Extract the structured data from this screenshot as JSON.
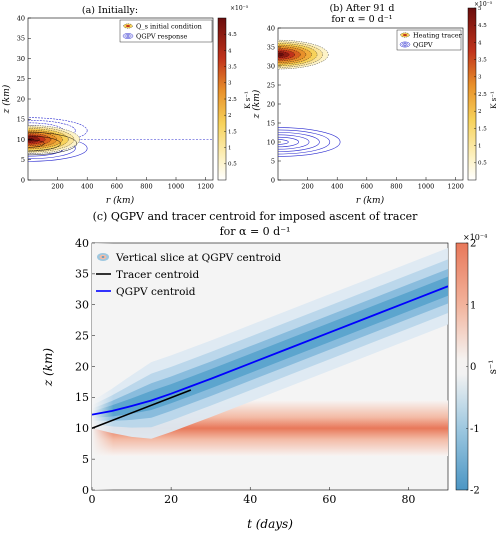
{
  "chart_data": [
    {
      "panel": "a",
      "type": "contour",
      "title": "(a) Initially:",
      "xlabel": "r (km)",
      "ylabel": "z (km)",
      "xlim": [
        0,
        1250
      ],
      "ylim": [
        0,
        40
      ],
      "xticks": [
        "200",
        "400",
        "600",
        "800",
        "1000",
        "1200"
      ],
      "yticks": [
        "0",
        "5",
        "10",
        "15",
        "20",
        "25",
        "30",
        "35",
        "40"
      ],
      "legend": [
        "Q_s initial condition",
        "QGPV response"
      ],
      "legend_placement": "top-right",
      "heating_center_km": [
        0,
        10
      ],
      "qgpv_center_km": [
        0,
        10
      ],
      "colorbar": {
        "label": "K s⁻¹",
        "multiplier": "×10⁻⁵",
        "ticks": [
          "0.5",
          "1",
          "1.5",
          "2",
          "2.5",
          "3",
          "3.5",
          "4",
          "4.5"
        ],
        "range": [
          0,
          5
        ]
      }
    },
    {
      "panel": "b",
      "type": "contour",
      "title_line1": "(b) After 91 d",
      "title_line2": "for α = 0 d⁻¹",
      "xlabel": "r (km)",
      "ylabel": "z (km)",
      "xlim": [
        0,
        1250
      ],
      "ylim": [
        0,
        40
      ],
      "xticks": [
        "200",
        "400",
        "600",
        "800",
        "1000",
        "1200"
      ],
      "yticks": [
        "0",
        "5",
        "10",
        "15",
        "20",
        "25",
        "30",
        "35",
        "40"
      ],
      "legend": [
        "Heating tracer",
        "QGPV"
      ],
      "legend_placement": "top-right",
      "heating_center_km": [
        0,
        33
      ],
      "qgpv_center_km": [
        0,
        10
      ],
      "colorbar": {
        "label": "K s⁻¹",
        "multiplier": "×10⁻⁵",
        "ticks": [
          "0.5",
          "1",
          "1.5",
          "2",
          "2.5",
          "3",
          "3.5",
          "4",
          "4.5",
          "5"
        ],
        "range": [
          0,
          5
        ]
      }
    },
    {
      "panel": "c",
      "type": "line",
      "title_line1": "(c) QGPV and tracer centroid for imposed ascent of tracer",
      "title_line2": "for α = 0 d⁻¹",
      "xlabel": "t (days)",
      "ylabel": "z (km)",
      "xlim": [
        0,
        90
      ],
      "ylim": [
        0,
        40
      ],
      "xticks": [
        "0",
        "20",
        "40",
        "60",
        "80"
      ],
      "yticks": [
        "0",
        "5",
        "10",
        "15",
        "20",
        "25",
        "30",
        "35",
        "40"
      ],
      "legend": [
        "Vertical slice at QGPV centroid",
        "Tracer centroid",
        "QGPV centroid"
      ],
      "legend_placement": "top-left",
      "series": [
        {
          "name": "Tracer centroid",
          "color": "#000000",
          "x": [
            0,
            25
          ],
          "y": [
            10,
            16.2
          ]
        },
        {
          "name": "QGPV centroid",
          "color": "#0000ff",
          "x": [
            0,
            5,
            10,
            15,
            20,
            25,
            30,
            40,
            50,
            60,
            70,
            80,
            90
          ],
          "y": [
            12.2,
            12.8,
            13.6,
            14.5,
            15.6,
            16.8,
            18.0,
            20.5,
            23.0,
            25.5,
            28.0,
            30.5,
            33.0
          ]
        }
      ],
      "colorbar": {
        "label": "s⁻¹",
        "multiplier": "×10⁻⁴",
        "ticks": [
          "-2",
          "-1",
          "0",
          "1",
          "2"
        ],
        "range": [
          -2,
          2
        ]
      },
      "negative_band_z_km": 10,
      "positive_band_start_z_km": 12
    }
  ],
  "colors": {
    "qgpv_contour": "#2a2ad0",
    "heating_low": "#fdf3c8",
    "heating_high": "#6a0d0d",
    "negative_blue": "#5aa3cc",
    "positive_orange": "#e8785a"
  }
}
